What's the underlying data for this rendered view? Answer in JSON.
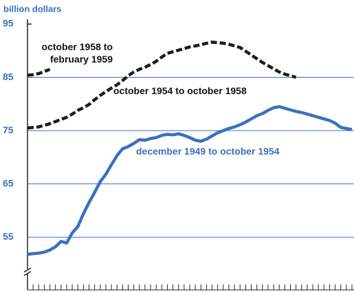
{
  "chart_data": {
    "type": "line",
    "y_label": "billion dollars",
    "x": [
      0,
      1,
      2,
      3,
      4,
      5,
      6,
      7,
      8,
      9,
      10,
      11,
      12,
      13,
      14,
      15,
      16,
      17,
      18,
      19,
      20,
      21,
      22,
      23,
      24,
      25,
      26,
      27,
      28,
      29,
      30,
      31,
      32,
      33,
      34,
      35,
      36,
      37,
      38,
      39,
      40,
      41,
      42,
      43,
      44,
      45,
      46,
      47,
      48,
      49,
      50,
      51,
      52,
      53,
      54,
      55,
      56,
      57,
      58
    ],
    "xlim": [
      0,
      58
    ],
    "ylim": [
      50,
      95
    ],
    "yticks": [
      55,
      65,
      75,
      85,
      95
    ],
    "grid": true,
    "series": [
      {
        "name": "december 1949 to october 1954",
        "color": "#3b70bf",
        "style": "solid",
        "values": [
          51.8,
          51.9,
          52.0,
          52.2,
          52.6,
          53.2,
          54.2,
          53.9,
          55.8,
          57.0,
          59.4,
          61.5,
          63.4,
          65.4,
          66.8,
          68.6,
          70.3,
          71.6,
          72.0,
          72.6,
          73.3,
          73.2,
          73.5,
          73.7,
          74.1,
          74.3,
          74.2,
          74.4,
          74.1,
          73.7,
          73.2,
          73.0,
          73.4,
          74.0,
          74.6,
          75.0,
          75.4,
          75.7,
          76.1,
          76.6,
          77.2,
          77.8,
          78.2,
          78.8,
          79.3,
          79.5,
          79.2,
          78.9,
          78.6,
          78.4,
          78.1,
          77.8,
          77.5,
          77.2,
          76.9,
          76.4,
          75.6,
          75.4,
          75.2
        ]
      },
      {
        "name": "october 1954 to october 1958",
        "color": "#1c1c1c",
        "style": "dashed",
        "values": [
          75.5,
          75.6,
          75.7,
          76.0,
          76.3,
          76.7,
          77.1,
          77.5,
          78.1,
          78.8,
          79.3,
          79.9,
          80.8,
          81.6,
          82.3,
          83.0,
          83.6,
          84.4,
          85.3,
          86.0,
          86.5,
          86.9,
          87.4,
          88.0,
          88.8,
          89.5,
          89.8,
          90.1,
          90.4,
          90.7,
          90.9,
          91.1,
          91.4,
          91.6,
          91.5,
          91.4,
          91.2,
          90.9,
          90.6,
          89.9,
          89.2,
          88.5,
          87.8,
          87.2,
          86.6,
          86.0,
          85.6,
          85.3,
          85.0,
          null,
          null,
          null,
          null,
          null,
          null,
          null,
          null,
          null,
          null
        ]
      },
      {
        "name": "october 1958 to february 1959",
        "color": "#1c1c1c",
        "style": "dashed",
        "values": [
          85.4,
          85.5,
          85.7,
          86.1,
          86.5,
          null,
          null,
          null,
          null,
          null,
          null,
          null,
          null,
          null,
          null,
          null,
          null,
          null,
          null,
          null,
          null,
          null,
          null,
          null,
          null,
          null,
          null,
          null,
          null,
          null,
          null,
          null,
          null,
          null,
          null,
          null,
          null,
          null,
          null,
          null,
          null,
          null,
          null,
          null,
          null,
          null,
          null,
          null,
          null,
          null,
          null,
          null,
          null,
          null,
          null,
          null,
          null,
          null,
          null
        ]
      }
    ]
  }
}
